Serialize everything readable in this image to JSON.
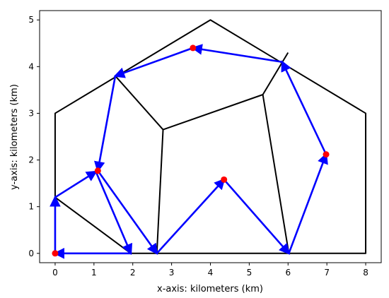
{
  "chart_data": {
    "type": "line",
    "title": "",
    "xlabel": "x-axis: kilometers (km)",
    "ylabel": "y-axis: kilometers (km)",
    "xlim": [
      -0.4,
      8.4
    ],
    "ylim": [
      -0.2,
      5.2
    ],
    "xticks": [
      0,
      1,
      2,
      3,
      4,
      5,
      6,
      7,
      8
    ],
    "yticks": [
      0,
      1,
      2,
      3,
      4,
      5
    ],
    "grid": false,
    "legend": "none",
    "boundary_polygon": {
      "color": "#000000",
      "points": [
        [
          0,
          0
        ],
        [
          8,
          0
        ],
        [
          8,
          3
        ],
        [
          4,
          5
        ],
        [
          0,
          3
        ]
      ]
    },
    "internal_edges": {
      "color": "#000000",
      "segments": [
        [
          [
            0,
            1.2
          ],
          [
            1.95,
            0
          ]
        ],
        [
          [
            1.55,
            3.8
          ],
          [
            2.78,
            2.65
          ]
        ],
        [
          [
            2.78,
            2.65
          ],
          [
            2.62,
            0
          ]
        ],
        [
          [
            2.78,
            2.65
          ],
          [
            5.35,
            3.4
          ]
        ],
        [
          [
            5.35,
            3.4
          ],
          [
            6.02,
            0
          ]
        ],
        [
          [
            5.35,
            3.4
          ],
          [
            6.0,
            4.3
          ]
        ]
      ]
    },
    "route": {
      "color": "#0000ff",
      "arrows": [
        [
          [
            0,
            0
          ],
          [
            0,
            1.2
          ]
        ],
        [
          [
            0,
            1.2
          ],
          [
            1.05,
            1.75
          ]
        ],
        [
          [
            1.05,
            1.75
          ],
          [
            1.95,
            0
          ]
        ],
        [
          [
            1.95,
            0
          ],
          [
            0,
            0
          ]
        ],
        [
          [
            1.1,
            1.77
          ],
          [
            2.62,
            0
          ]
        ],
        [
          [
            2.62,
            0
          ],
          [
            4.35,
            1.58
          ]
        ],
        [
          [
            4.35,
            1.58
          ],
          [
            6.02,
            0
          ]
        ],
        [
          [
            6.02,
            0
          ],
          [
            6.98,
            2.12
          ]
        ],
        [
          [
            6.98,
            2.12
          ],
          [
            5.85,
            4.1
          ]
        ],
        [
          [
            5.85,
            4.1
          ],
          [
            3.55,
            4.4
          ]
        ],
        [
          [
            3.55,
            4.4
          ],
          [
            1.55,
            3.8
          ]
        ],
        [
          [
            1.55,
            3.8
          ],
          [
            1.1,
            1.77
          ]
        ]
      ]
    },
    "points": {
      "color": "#ff0000",
      "xy": [
        [
          0,
          0
        ],
        [
          1.1,
          1.77
        ],
        [
          3.55,
          4.4
        ],
        [
          4.35,
          1.58
        ],
        [
          6.98,
          2.12
        ]
      ]
    }
  }
}
